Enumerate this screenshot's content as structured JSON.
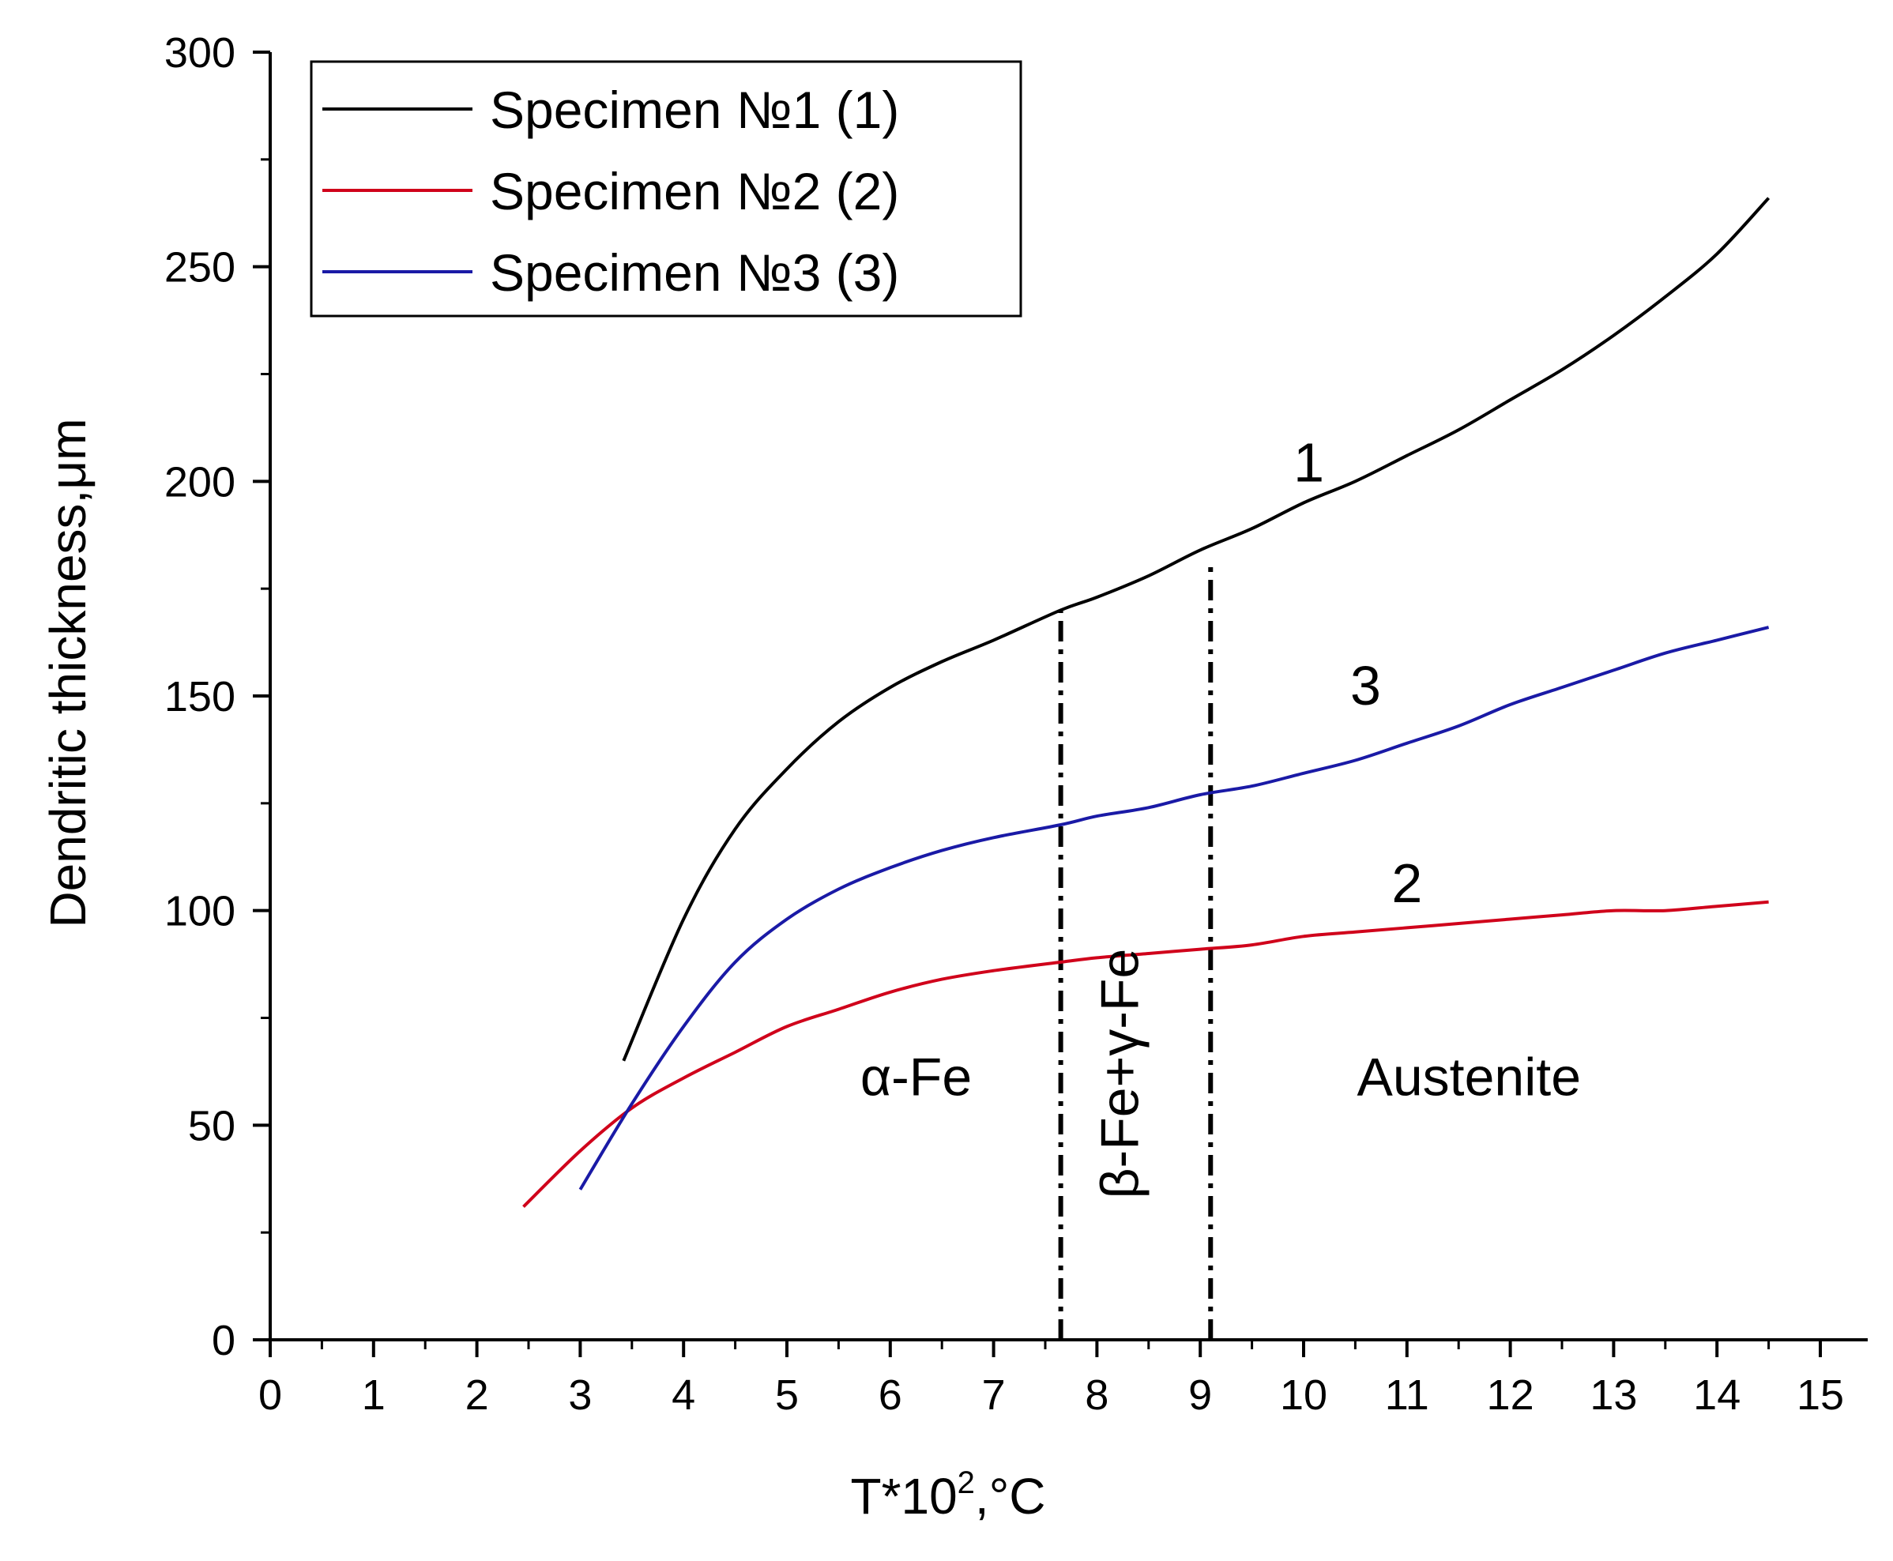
{
  "chart_data": {
    "type": "line",
    "title": "",
    "xlabel": "T*10",
    "xlabel_sup": "2",
    "xlabel_unit": ",°C",
    "ylabel": "Dendritic thickness,μm",
    "xlim": [
      0,
      15
    ],
    "ylim": [
      0,
      300
    ],
    "xticks": [
      0,
      1,
      2,
      3,
      4,
      5,
      6,
      7,
      8,
      9,
      10,
      11,
      12,
      13,
      14,
      15
    ],
    "yticks": [
      0,
      50,
      100,
      150,
      200,
      250,
      300
    ],
    "grid": false,
    "legend_position": "top-left",
    "series": [
      {
        "name": "Specimen №1 (1)",
        "color": "#000000",
        "curve_label": "1",
        "points": [
          [
            3.42,
            65
          ],
          [
            4.0,
            98
          ],
          [
            4.5,
            119
          ],
          [
            5.0,
            133
          ],
          [
            5.5,
            144
          ],
          [
            6.0,
            152
          ],
          [
            6.5,
            158
          ],
          [
            7.0,
            163
          ],
          [
            7.65,
            170
          ],
          [
            8.0,
            173
          ],
          [
            8.5,
            178
          ],
          [
            9.0,
            184
          ],
          [
            9.5,
            189
          ],
          [
            10.0,
            195
          ],
          [
            10.5,
            200
          ],
          [
            11.0,
            206
          ],
          [
            11.5,
            212
          ],
          [
            12.0,
            219
          ],
          [
            12.5,
            226
          ],
          [
            13.0,
            234
          ],
          [
            13.5,
            243
          ],
          [
            14.0,
            253
          ],
          [
            14.5,
            266
          ]
        ]
      },
      {
        "name": "Specimen №2 (2)",
        "color": "#d0021b",
        "curve_label": "2",
        "points": [
          [
            2.45,
            31
          ],
          [
            3.0,
            44
          ],
          [
            3.5,
            54
          ],
          [
            4.0,
            61
          ],
          [
            4.5,
            67
          ],
          [
            5.0,
            73
          ],
          [
            5.5,
            77
          ],
          [
            6.0,
            81
          ],
          [
            6.5,
            84
          ],
          [
            7.0,
            86
          ],
          [
            7.65,
            88
          ],
          [
            8.0,
            89
          ],
          [
            8.5,
            90
          ],
          [
            9.0,
            91
          ],
          [
            9.5,
            92
          ],
          [
            10.0,
            94
          ],
          [
            10.5,
            95
          ],
          [
            11.0,
            96
          ],
          [
            11.5,
            97
          ],
          [
            12.0,
            98
          ],
          [
            12.5,
            99
          ],
          [
            13.0,
            100
          ],
          [
            13.5,
            100
          ],
          [
            14.0,
            101
          ],
          [
            14.5,
            102
          ]
        ]
      },
      {
        "name": "Specimen №3 (3)",
        "color": "#1a1aa6",
        "curve_label": "3",
        "points": [
          [
            3.0,
            35
          ],
          [
            3.5,
            55
          ],
          [
            4.0,
            73
          ],
          [
            4.5,
            88
          ],
          [
            5.0,
            98
          ],
          [
            5.5,
            105
          ],
          [
            6.0,
            110
          ],
          [
            6.5,
            114
          ],
          [
            7.0,
            117
          ],
          [
            7.65,
            120
          ],
          [
            8.0,
            122
          ],
          [
            8.5,
            124
          ],
          [
            9.0,
            127
          ],
          [
            9.5,
            129
          ],
          [
            10.0,
            132
          ],
          [
            10.5,
            135
          ],
          [
            11.0,
            139
          ],
          [
            11.5,
            143
          ],
          [
            12.0,
            148
          ],
          [
            12.5,
            152
          ],
          [
            13.0,
            156
          ],
          [
            13.5,
            160
          ],
          [
            14.0,
            163
          ],
          [
            14.5,
            166
          ]
        ]
      }
    ],
    "curve_label_positions": {
      "1": [
        10.05,
        200
      ],
      "2": [
        11.0,
        102
      ],
      "3": [
        10.6,
        148
      ]
    },
    "boundaries": [
      {
        "x": 7.65,
        "ymax": 170
      },
      {
        "x": 9.1,
        "ymax": 180
      }
    ],
    "regions": [
      {
        "label": "α-Fe",
        "x": 6.25,
        "y": 57,
        "rotate": false
      },
      {
        "label": "β-Fe+γ-Fe",
        "x": 8.4,
        "y": 62,
        "rotate": true
      },
      {
        "label": "Austenite",
        "x": 11.6,
        "y": 57,
        "rotate": false
      }
    ]
  }
}
